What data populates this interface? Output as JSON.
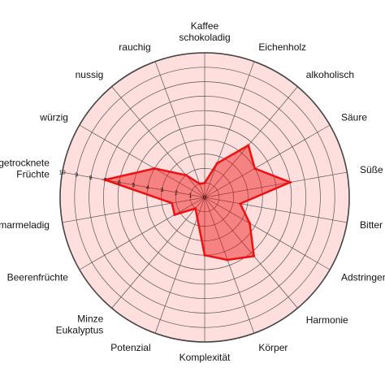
{
  "chart_data": {
    "type": "radar",
    "categories": [
      [
        "Kaffee",
        "schokoladig"
      ],
      [
        "Eichenholz"
      ],
      [
        "alkoholisch"
      ],
      [
        "Säure"
      ],
      [
        "Süße"
      ],
      [
        "Bitter"
      ],
      [
        "Adstringenz"
      ],
      [
        "Harmonie"
      ],
      [
        "Körper"
      ],
      [
        "Komplexität"
      ],
      [
        "Potenzial"
      ],
      [
        "Minze",
        "Eukalyptus"
      ],
      [
        "Beerenfrüchte"
      ],
      [
        "marmeladig"
      ],
      [
        "getrocknete",
        "Früchte"
      ],
      [
        "würzig"
      ],
      [
        "nussig"
      ],
      [
        "rauchig"
      ]
    ],
    "values": [
      1,
      2.5,
      4.7,
      4,
      6,
      2.5,
      3.6,
      5.3,
      4.6,
      4,
      1.5,
      1,
      2.4,
      2.3,
      7,
      4,
      2,
      1
    ],
    "rlim": [
      0,
      10
    ],
    "rticks": [
      0,
      1,
      2,
      3,
      4,
      5,
      6,
      7,
      8,
      9,
      10
    ],
    "color": "#ee1111",
    "grid": true
  }
}
